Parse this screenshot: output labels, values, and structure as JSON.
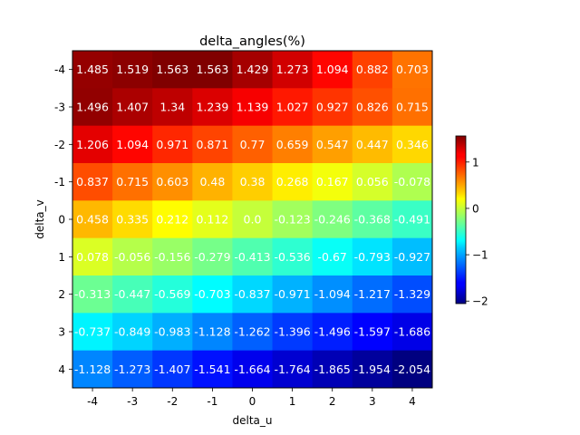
{
  "chart_data": {
    "type": "heatmap",
    "title": "delta_angles(%)",
    "xlabel": "delta_u",
    "ylabel": "delta_v",
    "x": [
      "-4",
      "-3",
      "-2",
      "-1",
      "0",
      "1",
      "2",
      "3",
      "4"
    ],
    "y": [
      "-4",
      "-3",
      "-2",
      "-1",
      "0",
      "1",
      "2",
      "3",
      "4"
    ],
    "values": [
      [
        1.485,
        1.519,
        1.563,
        1.563,
        1.429,
        1.273,
        1.094,
        0.882,
        0.703
      ],
      [
        1.496,
        1.407,
        1.34,
        1.239,
        1.139,
        1.027,
        0.927,
        0.826,
        0.715
      ],
      [
        1.206,
        1.094,
        0.971,
        0.871,
        0.77,
        0.659,
        0.547,
        0.447,
        0.346
      ],
      [
        0.837,
        0.715,
        0.603,
        0.48,
        0.38,
        0.268,
        0.167,
        0.056,
        -0.078
      ],
      [
        0.458,
        0.335,
        0.212,
        0.112,
        0.0,
        -0.123,
        -0.246,
        -0.368,
        -0.491
      ],
      [
        0.078,
        -0.056,
        -0.156,
        -0.279,
        -0.413,
        -0.536,
        -0.67,
        -0.793,
        -0.927
      ],
      [
        -0.313,
        -0.447,
        -0.569,
        -0.703,
        -0.837,
        -0.971,
        -1.094,
        -1.217,
        -1.329
      ],
      [
        -0.737,
        -0.849,
        -0.983,
        -1.128,
        -1.262,
        -1.396,
        -1.496,
        -1.597,
        -1.686
      ],
      [
        -1.128,
        -1.273,
        -1.407,
        -1.541,
        -1.664,
        -1.764,
        -1.865,
        -1.954,
        -2.054
      ]
    ],
    "labels": [
      [
        "1.485",
        "1.519",
        "1.563",
        "1.563",
        "1.429",
        "1.273",
        "1.094",
        "0.882",
        "0.703"
      ],
      [
        "1.496",
        "1.407",
        "1.34",
        "1.239",
        "1.139",
        "1.027",
        "0.927",
        "0.826",
        "0.715"
      ],
      [
        "1.206",
        "1.094",
        "0.971",
        "0.871",
        "0.77",
        "0.659",
        "0.547",
        "0.447",
        "0.346"
      ],
      [
        "0.837",
        "0.715",
        "0.603",
        "0.48",
        "0.38",
        "0.268",
        "0.167",
        "0.056",
        "-0.078"
      ],
      [
        "0.458",
        "0.335",
        "0.212",
        "0.112",
        "0.0",
        "-0.123",
        "-0.246",
        "-0.368",
        "-0.491"
      ],
      [
        "0.078",
        "-0.056",
        "-0.156",
        "-0.279",
        "-0.413",
        "-0.536",
        "-0.67",
        "-0.793",
        "-0.927"
      ],
      [
        "-0.313",
        "-0.447",
        "-0.569",
        "-0.703",
        "-0.837",
        "-0.971",
        "-1.094",
        "-1.217",
        "-1.329"
      ],
      [
        "-0.737",
        "-0.849",
        "-0.983",
        "-1.128",
        "-1.262",
        "-1.396",
        "-1.496",
        "-1.597",
        "-1.686"
      ],
      [
        "-1.128",
        "-1.273",
        "-1.407",
        "-1.541",
        "-1.664",
        "-1.764",
        "-1.865",
        "-1.954",
        "-2.054"
      ]
    ],
    "colormap": "jet",
    "vmin": -2.054,
    "vmax": 1.563,
    "colorbar": {
      "ticks": [
        1,
        0,
        -1,
        -2
      ],
      "tick_labels": [
        "1",
        "0",
        "−1",
        "−2"
      ]
    },
    "value_label_color": "#ffffff",
    "grid": false,
    "legend": "none"
  }
}
